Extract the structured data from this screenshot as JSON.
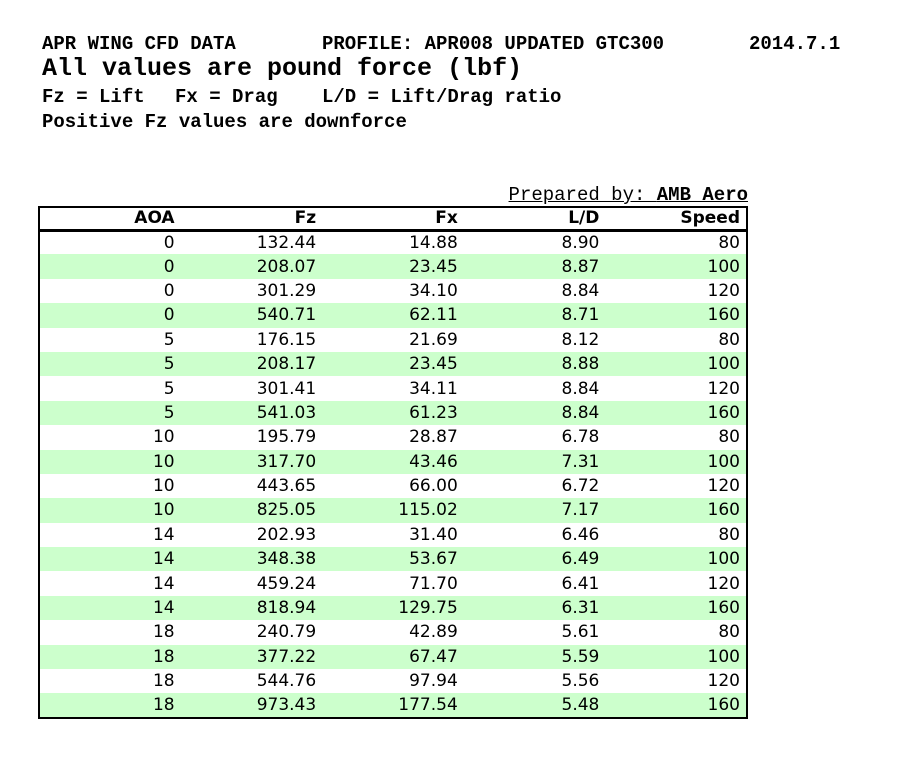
{
  "header": {
    "title": "APR WING CFD DATA",
    "profile": "PROFILE: APR008 UPDATED GTC300",
    "date": "2014.7.1",
    "units_note": "All values are pound force (lbf)",
    "legend": {
      "fz": "Fz = Lift",
      "fx": "Fx = Drag",
      "ld": "L/D = Lift/Drag ratio"
    },
    "downforce_note": "Positive Fz values are downforce"
  },
  "prepared_by": {
    "label": "Prepared by: ",
    "value": "AMB Aero"
  },
  "table": {
    "columns": [
      "AOA",
      "Fz",
      "Fx",
      "L/D",
      "Speed"
    ],
    "rows": [
      [
        "0",
        "132.44",
        "14.88",
        "8.90",
        "80"
      ],
      [
        "0",
        "208.07",
        "23.45",
        "8.87",
        "100"
      ],
      [
        "0",
        "301.29",
        "34.10",
        "8.84",
        "120"
      ],
      [
        "0",
        "540.71",
        "62.11",
        "8.71",
        "160"
      ],
      [
        "5",
        "176.15",
        "21.69",
        "8.12",
        "80"
      ],
      [
        "5",
        "208.17",
        "23.45",
        "8.88",
        "100"
      ],
      [
        "5",
        "301.41",
        "34.11",
        "8.84",
        "120"
      ],
      [
        "5",
        "541.03",
        "61.23",
        "8.84",
        "160"
      ],
      [
        "10",
        "195.79",
        "28.87",
        "6.78",
        "80"
      ],
      [
        "10",
        "317.70",
        "43.46",
        "7.31",
        "100"
      ],
      [
        "10",
        "443.65",
        "66.00",
        "6.72",
        "120"
      ],
      [
        "10",
        "825.05",
        "115.02",
        "7.17",
        "160"
      ],
      [
        "14",
        "202.93",
        "31.40",
        "6.46",
        "80"
      ],
      [
        "14",
        "348.38",
        "53.67",
        "6.49",
        "100"
      ],
      [
        "14",
        "459.24",
        "71.70",
        "6.41",
        "120"
      ],
      [
        "14",
        "818.94",
        "129.75",
        "6.31",
        "160"
      ],
      [
        "18",
        "240.79",
        "42.89",
        "5.61",
        "80"
      ],
      [
        "18",
        "377.22",
        "67.47",
        "5.59",
        "100"
      ],
      [
        "18",
        "544.76",
        "97.94",
        "5.56",
        "120"
      ],
      [
        "18",
        "973.43",
        "177.54",
        "5.48",
        "160"
      ]
    ]
  },
  "colors": {
    "row_alt_green": "#ccffcc",
    "border": "#000000",
    "text": "#000000"
  }
}
